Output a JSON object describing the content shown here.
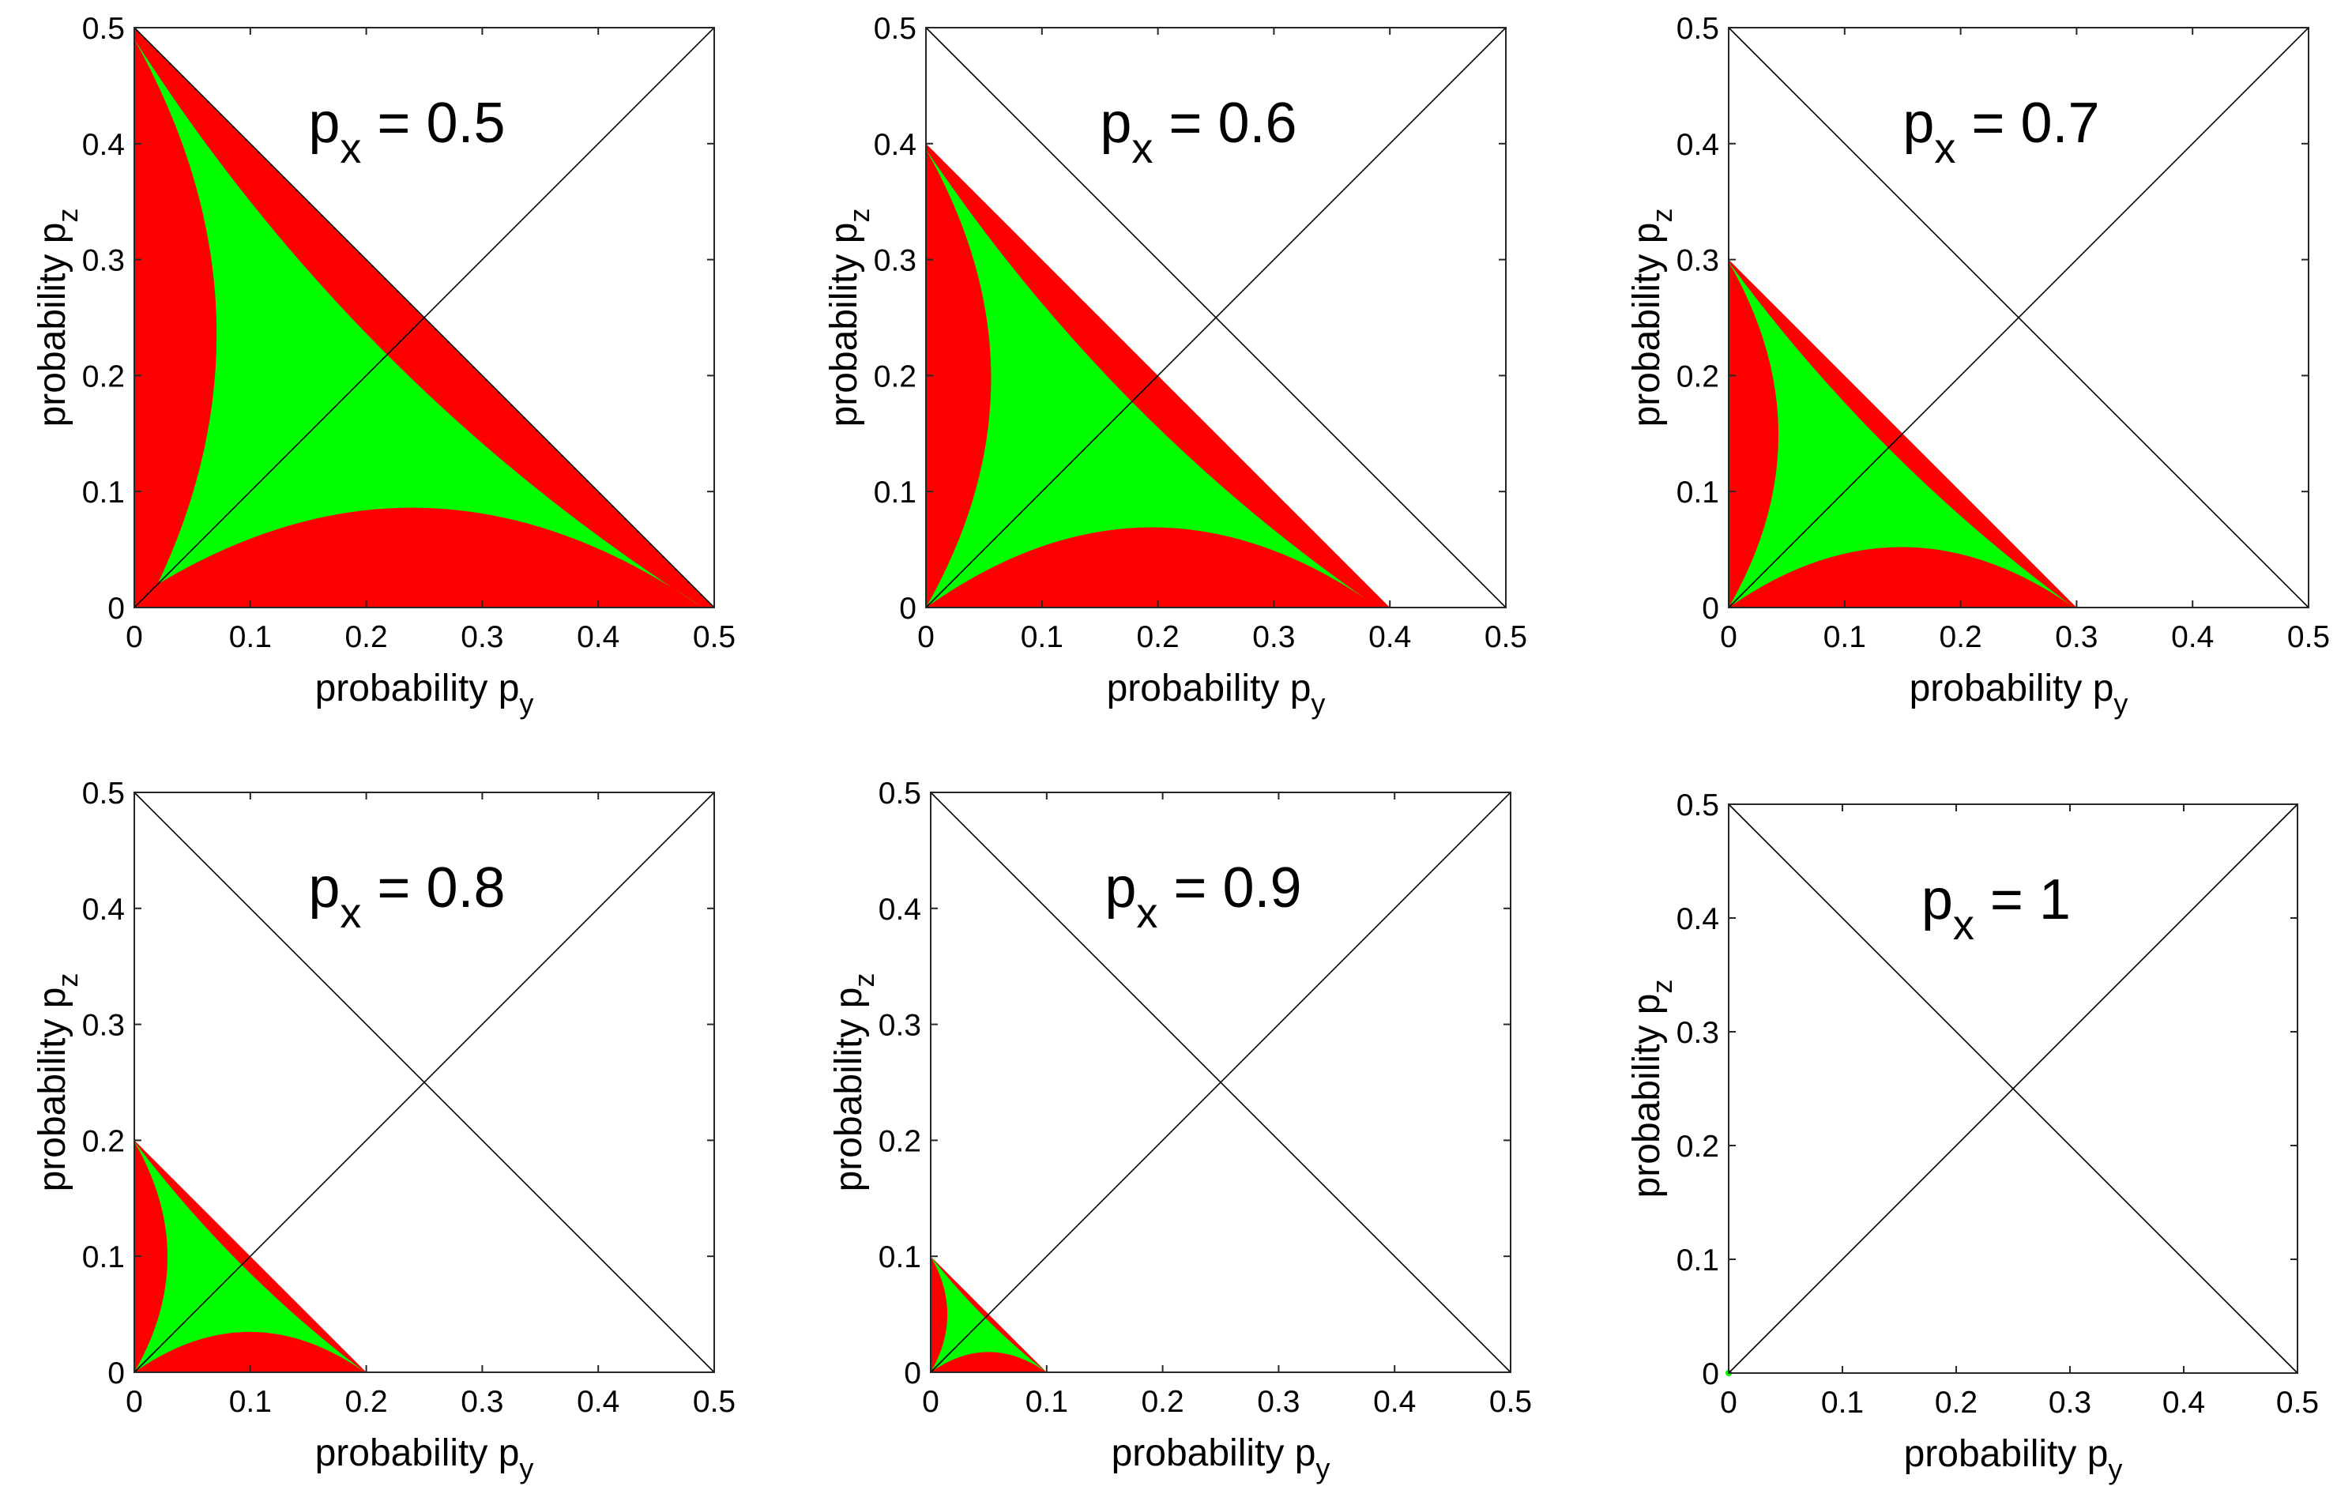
{
  "figure": {
    "description_colors": {
      "inside_region": "#ff0000",
      "valid_region": "#00ff00",
      "axes": "#000000",
      "background": "#ffffff"
    }
  },
  "chart_data": [
    {
      "type": "scatter",
      "title_main": "p",
      "title_sub": "x",
      "title_rest": " = 0.5",
      "px": 0.5,
      "xlabel_main": "probability p",
      "xlabel_sub": "y",
      "ylabel_main": "probability p",
      "ylabel_sub": "z",
      "xlim": [
        0,
        0.5
      ],
      "ylim": [
        0,
        0.5
      ],
      "xticks": [
        "0",
        "0.1",
        "0.2",
        "0.3",
        "0.4",
        "0.5"
      ],
      "yticks": [
        "0",
        "0.1",
        "0.2",
        "0.3",
        "0.4",
        "0.5"
      ],
      "series": [
        {
          "name": "red",
          "color": "#ff0000",
          "hypotenuse": 0.5
        },
        {
          "name": "green",
          "color": "#00ff00",
          "corners": [
            [
              0.0,
              0.49
            ],
            [
              0.49,
              0.0
            ],
            [
              0.02,
              0.02
            ]
          ],
          "inner": [
            0.2,
            0.2
          ]
        }
      ]
    },
    {
      "type": "scatter",
      "title_main": "p",
      "title_sub": "x",
      "title_rest": " = 0.6",
      "px": 0.6,
      "xlabel_main": "probability p",
      "xlabel_sub": "y",
      "ylabel_main": "probability p",
      "ylabel_sub": "z",
      "xlim": [
        0,
        0.5
      ],
      "ylim": [
        0,
        0.5
      ],
      "xticks": [
        "0",
        "0.1",
        "0.2",
        "0.3",
        "0.4",
        "0.5"
      ],
      "yticks": [
        "0",
        "0.1",
        "0.2",
        "0.3",
        "0.4",
        "0.5"
      ],
      "series": [
        {
          "name": "red",
          "color": "#ff0000",
          "hypotenuse": 0.4
        },
        {
          "name": "green",
          "color": "#00ff00",
          "corners": [
            [
              0.0,
              0.395
            ],
            [
              0.39,
              0.0
            ],
            [
              0.0,
              0.0
            ]
          ],
          "inner": [
            0.165,
            0.165
          ]
        }
      ]
    },
    {
      "type": "scatter",
      "title_main": "p",
      "title_sub": "x",
      "title_rest": " = 0.7",
      "px": 0.7,
      "xlabel_main": "probability p",
      "xlabel_sub": "y",
      "ylabel_main": "probability p",
      "ylabel_sub": "z",
      "xlim": [
        0,
        0.5
      ],
      "ylim": [
        0,
        0.5
      ],
      "xticks": [
        "0",
        "0.1",
        "0.2",
        "0.3",
        "0.4",
        "0.5"
      ],
      "yticks": [
        "0",
        "0.1",
        "0.2",
        "0.3",
        "0.4",
        "0.5"
      ],
      "series": [
        {
          "name": "red",
          "color": "#ff0000",
          "hypotenuse": 0.3
        },
        {
          "name": "green",
          "color": "#00ff00",
          "corners": [
            [
              0.0,
              0.298
            ],
            [
              0.298,
              0.0
            ],
            [
              0.0,
              0.0
            ]
          ],
          "inner": [
            0.13,
            0.13
          ]
        }
      ]
    },
    {
      "type": "scatter",
      "title_main": "p",
      "title_sub": "x",
      "title_rest": " = 0.8",
      "px": 0.8,
      "xlabel_main": "probability p",
      "xlabel_sub": "y",
      "ylabel_main": "probability p",
      "ylabel_sub": "z",
      "xlim": [
        0,
        0.5
      ],
      "ylim": [
        0,
        0.5
      ],
      "xticks": [
        "0",
        "0.1",
        "0.2",
        "0.3",
        "0.4",
        "0.5"
      ],
      "yticks": [
        "0",
        "0.1",
        "0.2",
        "0.3",
        "0.4",
        "0.5"
      ],
      "series": [
        {
          "name": "red",
          "color": "#ff0000",
          "hypotenuse": 0.2
        },
        {
          "name": "green",
          "color": "#00ff00",
          "corners": [
            [
              0.0,
              0.199
            ],
            [
              0.199,
              0.0
            ],
            [
              0.0,
              0.0
            ]
          ],
          "inner": [
            0.088,
            0.088
          ]
        }
      ]
    },
    {
      "type": "scatter",
      "title_main": "p",
      "title_sub": "x",
      "title_rest": " = 0.9",
      "px": 0.9,
      "xlabel_main": "probability p",
      "xlabel_sub": "y",
      "ylabel_main": "probability p",
      "ylabel_sub": "z",
      "xlim": [
        0,
        0.5
      ],
      "ylim": [
        0,
        0.5
      ],
      "xticks": [
        "0",
        "0.1",
        "0.2",
        "0.3",
        "0.4",
        "0.5"
      ],
      "yticks": [
        "0",
        "0.1",
        "0.2",
        "0.3",
        "0.4",
        "0.5"
      ],
      "series": [
        {
          "name": "red",
          "color": "#ff0000",
          "hypotenuse": 0.1
        },
        {
          "name": "green",
          "color": "#00ff00",
          "corners": [
            [
              0.0,
              0.1
            ],
            [
              0.1,
              0.0
            ],
            [
              0.0,
              0.0
            ]
          ],
          "inner": [
            0.045,
            0.045
          ]
        }
      ]
    },
    {
      "type": "scatter",
      "title_main": "p",
      "title_sub": "x",
      "title_rest": " = 1",
      "px": 1,
      "xlabel_main": "probability p",
      "xlabel_sub": "y",
      "ylabel_main": "probability p",
      "ylabel_sub": "z",
      "xlim": [
        0,
        0.5
      ],
      "ylim": [
        0,
        0.5
      ],
      "xticks": [
        "0",
        "0.1",
        "0.2",
        "0.3",
        "0.4",
        "0.5"
      ],
      "yticks": [
        "0",
        "0.1",
        "0.2",
        "0.3",
        "0.4",
        "0.5"
      ],
      "series": [
        {
          "name": "green-point",
          "color": "#00ff00",
          "point": [
            0,
            0
          ]
        }
      ]
    }
  ]
}
